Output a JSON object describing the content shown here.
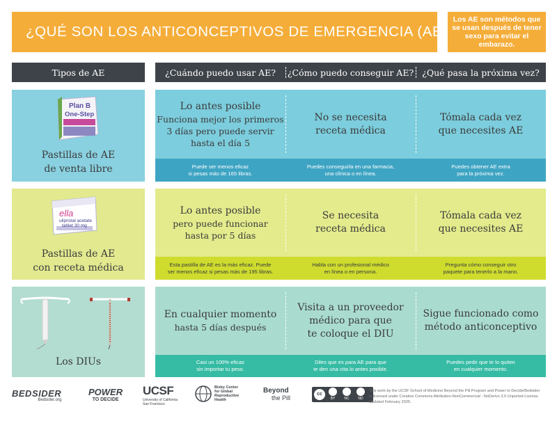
{
  "title": "¿QUÉ SON LOS ANTICONCEPTIVOS DE EMERGENCIA (AE)?",
  "note": "Los AE son métodos que se usan después de tener sexo para evitar el embarazo.",
  "headers": {
    "types": "Tipos de AE",
    "when": "¿Cuándo puedo usar AE?",
    "how": "¿Cómo puedo conseguir AE?",
    "next": "¿Qué pasa la próxima vez?"
  },
  "rows": [
    {
      "label_line1": "Pastillas de AE",
      "label_line2": "de venta libre",
      "product_line1": "Plan B",
      "product_line2": "One-Step",
      "when_title": "Lo antes posible",
      "when_detail_1": "Funciona mejor los primeros",
      "when_detail_2": "3 días pero puede servir",
      "when_detail_3": "hasta el día 5",
      "how_1": "No se necesita",
      "how_2": "receta médica",
      "next_1": "Tómala cada vez",
      "next_2": "que necesites AE",
      "band_when_1": "Puede ser menos eficaz",
      "band_when_2": "si pesas más de 165 libras.",
      "band_how_1": "Puedes conseguirla en una farmacia,",
      "band_how_2": "una clínica o en línea.",
      "band_next_1": "Puedes obtener AE extra",
      "band_next_2": "para la próxima vez."
    },
    {
      "label_line1": "Pastillas de AE",
      "label_line2": "con receta médica",
      "product_name": "ella",
      "product_line1": "ulipristal acetate",
      "product_line2": "tablet 30 mg",
      "when_title": "Lo antes posible",
      "when_detail_1": "pero puede funcionar",
      "when_detail_2": "hasta por 5 días",
      "how_1": "Se necesita",
      "how_2": "receta médica",
      "next_1": "Tómala cada vez",
      "next_2": "que necesites AE",
      "band_when_1": "Esta pastilla de AE es la más eficaz. Puede",
      "band_when_2": "ser menos eficaz si pesas más de 195 libras.",
      "band_how_1": "Habla con un profesional médico",
      "band_how_2": "en línea o en persona.",
      "band_next_1": "Pregunta cómo conseguir otro",
      "band_next_2": "paquete para tenerlo a la mano."
    },
    {
      "label_line1": "Los DIUs",
      "when_title": "En cualquier momento",
      "when_detail_1": "hasta 5 días después",
      "how_1": "Visita a un proveedor",
      "how_2": "médico para que",
      "how_3": "te coloque el DIU",
      "next_1": "Sigue funcionado como",
      "next_2": "método anticonceptivo",
      "band_when_1": "Casi un 100% eficaz",
      "band_when_2": "sin importar tu peso.",
      "band_how_1": "Diles que es para AE para que",
      "band_how_2": "te den una cita lo antes posible.",
      "band_next_1": "Puedes pedir que te lo quiten",
      "band_next_2": "en cualquier momento."
    }
  ],
  "footer": {
    "bedsider": "BEDSIDER",
    "bedsider_url": "Bedsider.org",
    "power_1": "POWER",
    "power_2": "TO DECIDE",
    "ucsf": "UCSF",
    "ucsf_sub_1": "University of California",
    "ucsf_sub_2": "San Francisco",
    "bixby_1": "Bixby Center",
    "bixby_2": "for Global",
    "bixby_3": "Reproductive",
    "bixby_4": "Health",
    "beyond_1": "Beyond",
    "beyond_2": "the Pill",
    "cc_by": "BY",
    "cc_nc": "NC",
    "cc_nd": "ND",
    "license": "This work by the UCSF School of Medicine Beyond the Pill Program and Power to Decide/Bedsider is licensed under Creative Commons Attribution-NonCommercial - NoDerivs 3.0 Unported License. Updated February 2025."
  },
  "colors": {
    "title_bg": "#f5ad3a",
    "header_bg": "#3e4349",
    "row1_left": "#89d0e0",
    "row1_main": "#7ccddd",
    "row1_band": "#3ea4c3",
    "row2_left": "#e2e98f",
    "row2_main": "#e3eb8c",
    "row2_band": "#cfdc2e",
    "row3_left": "#b3ddd1",
    "row3_main": "#a9dccf",
    "row3_band": "#36bba4"
  }
}
